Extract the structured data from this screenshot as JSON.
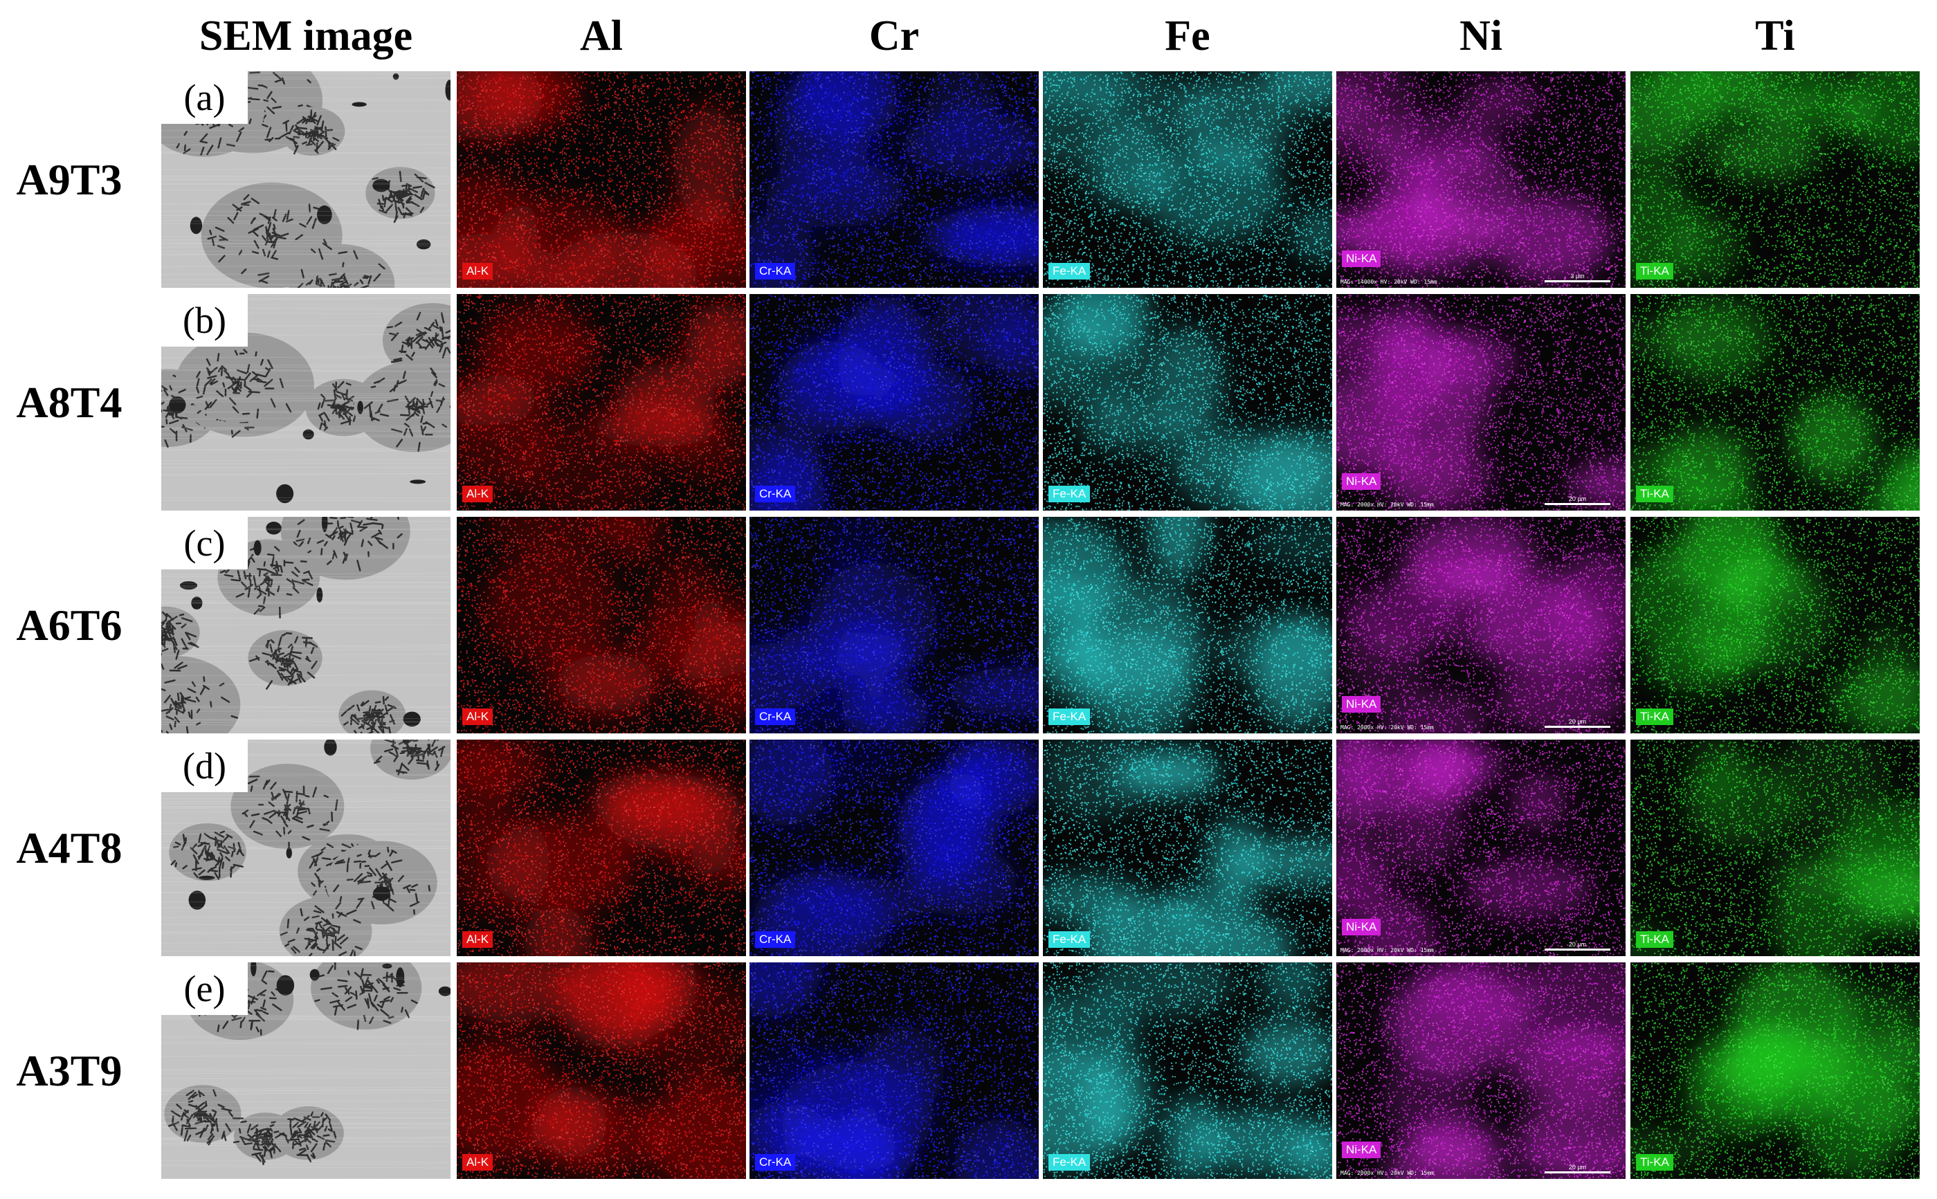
{
  "columns": [
    {
      "label": "SEM image",
      "color": "#b9b9b9"
    },
    {
      "label": "Al",
      "color": "#e01010",
      "tag": "Al-K"
    },
    {
      "label": "Cr",
      "color": "#1818ff",
      "tag": "Cr-KA"
    },
    {
      "label": "Fe",
      "color": "#30e0e0",
      "tag": "Fe-KA"
    },
    {
      "label": "Ni",
      "color": "#d020d8",
      "tag": "Ni-KA"
    },
    {
      "label": "Ti",
      "color": "#20cc20",
      "tag": "Ti-KA"
    }
  ],
  "rows": [
    {
      "label": "A9T3",
      "panel": "(a)",
      "meta": "MAG: 14000x  HV: 20kV  WD: 15mm",
      "scale": "3 µm"
    },
    {
      "label": "A8T4",
      "panel": "(b)",
      "meta": "MAG: 2000x  HV: 20kV  WD: 15mm",
      "scale": "20 µm"
    },
    {
      "label": "A6T6",
      "panel": "(c)",
      "meta": "MAG: 2000x  HV: 20kV  WD: 15mm",
      "scale": "20 µm"
    },
    {
      "label": "A4T8",
      "panel": "(d)",
      "meta": "MAG: 2000x  HV: 20kV  WD: 15mm",
      "scale": "20 µm"
    },
    {
      "label": "A3T9",
      "panel": "(e)",
      "meta": "MAG: 2000x  HV: 20kV  WD: 15mm",
      "scale": "20 µm"
    }
  ]
}
